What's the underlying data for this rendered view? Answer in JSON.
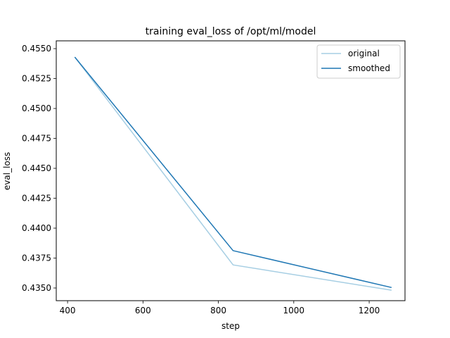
{
  "chart_data": {
    "type": "line",
    "title": "training eval_loss of /opt/ml/model",
    "xlabel": "step",
    "ylabel": "eval_loss",
    "xlim": [
      370,
      1295
    ],
    "ylim": [
      0.43394,
      0.45565
    ],
    "x_ticks": [
      400,
      600,
      800,
      1000,
      1200
    ],
    "x_tick_labels": [
      "400",
      "600",
      "800",
      "1000",
      "1200"
    ],
    "y_ticks": [
      0.435,
      0.4375,
      0.44,
      0.4425,
      0.445,
      0.4475,
      0.45,
      0.4525,
      0.455
    ],
    "y_tick_labels": [
      "0.4350",
      "0.4375",
      "0.4400",
      "0.4425",
      "0.4450",
      "0.4475",
      "0.4500",
      "0.4525",
      "0.4550"
    ],
    "grid": false,
    "legend_position": "top-right",
    "series": [
      {
        "name": "original",
        "color": "#a6cee3",
        "x": [
          420,
          839,
          1258
        ],
        "y": [
          0.45426,
          0.43693,
          0.43482
        ]
      },
      {
        "name": "smoothed",
        "color": "#1f77b4",
        "x": [
          420,
          839,
          1258
        ],
        "y": [
          0.45426,
          0.43812,
          0.43505
        ]
      }
    ]
  }
}
